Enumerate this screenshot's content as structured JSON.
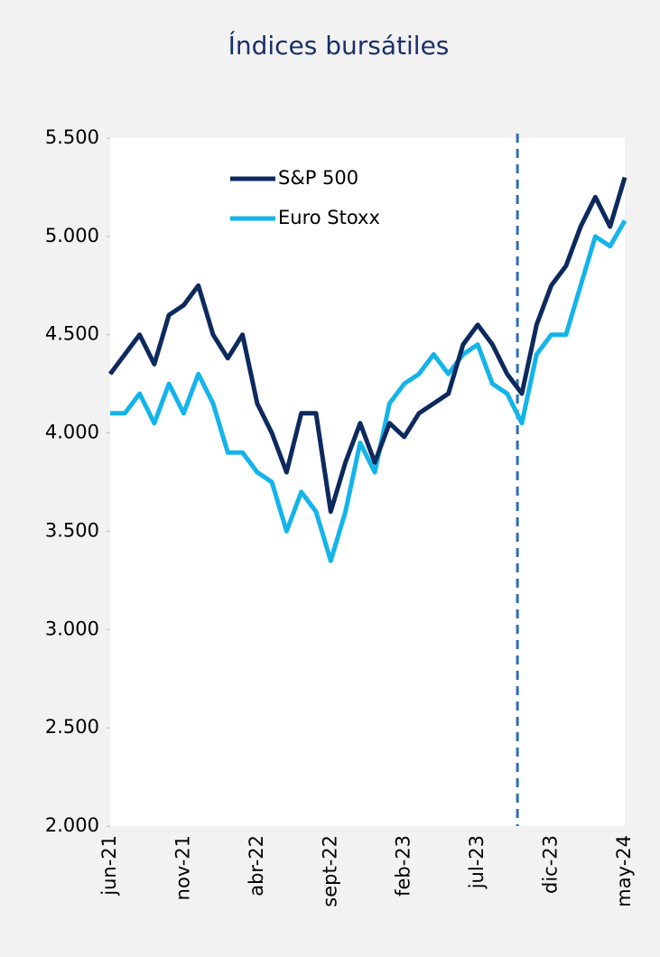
{
  "chart_data": {
    "type": "line",
    "title": "Índices bursátiles",
    "categories": [
      "jun-21",
      null,
      null,
      null,
      null,
      "nov-21",
      null,
      null,
      null,
      null,
      "abr-22",
      null,
      null,
      null,
      null,
      "sept-22",
      null,
      null,
      null,
      null,
      "feb-23",
      null,
      null,
      null,
      null,
      "jul-23",
      null,
      null,
      null,
      null,
      "dic-23",
      null,
      null,
      null,
      null,
      "may-24"
    ],
    "series": [
      {
        "name": "S&P 500",
        "color": "#0d2a5e",
        "values": [
          4300,
          4400,
          4500,
          4350,
          4600,
          4650,
          4750,
          4500,
          4380,
          4500,
          4150,
          4000,
          3800,
          4100,
          4100,
          3600,
          3850,
          4050,
          3850,
          4050,
          3980,
          4100,
          4150,
          4200,
          4450,
          4550,
          4450,
          4300,
          4200,
          4550,
          4750,
          4850,
          5050,
          5200,
          5050,
          5300
        ]
      },
      {
        "name": "Euro Stoxx",
        "color": "#14b4ea",
        "values": [
          4100,
          4100,
          4200,
          4050,
          4250,
          4100,
          4300,
          4150,
          3900,
          3900,
          3800,
          3750,
          3500,
          3700,
          3600,
          3350,
          3600,
          3950,
          3800,
          4150,
          4250,
          4300,
          4400,
          4300,
          4400,
          4450,
          4250,
          4200,
          4050,
          4400,
          4500,
          4500,
          4750,
          5000,
          4950,
          5080
        ]
      }
    ],
    "ylim": [
      2000,
      5500
    ],
    "yticks": [
      {
        "value": 2000,
        "label": "2.000"
      },
      {
        "value": 2500,
        "label": "2.500"
      },
      {
        "value": 3000,
        "label": "3.000"
      },
      {
        "value": 3500,
        "label": "3.500"
      },
      {
        "value": 4000,
        "label": "4.000"
      },
      {
        "value": 4500,
        "label": "4.500"
      },
      {
        "value": 5000,
        "label": "5.000"
      },
      {
        "value": 5500,
        "label": "5.500"
      }
    ],
    "vline": 27.7,
    "legend": "upper left"
  }
}
